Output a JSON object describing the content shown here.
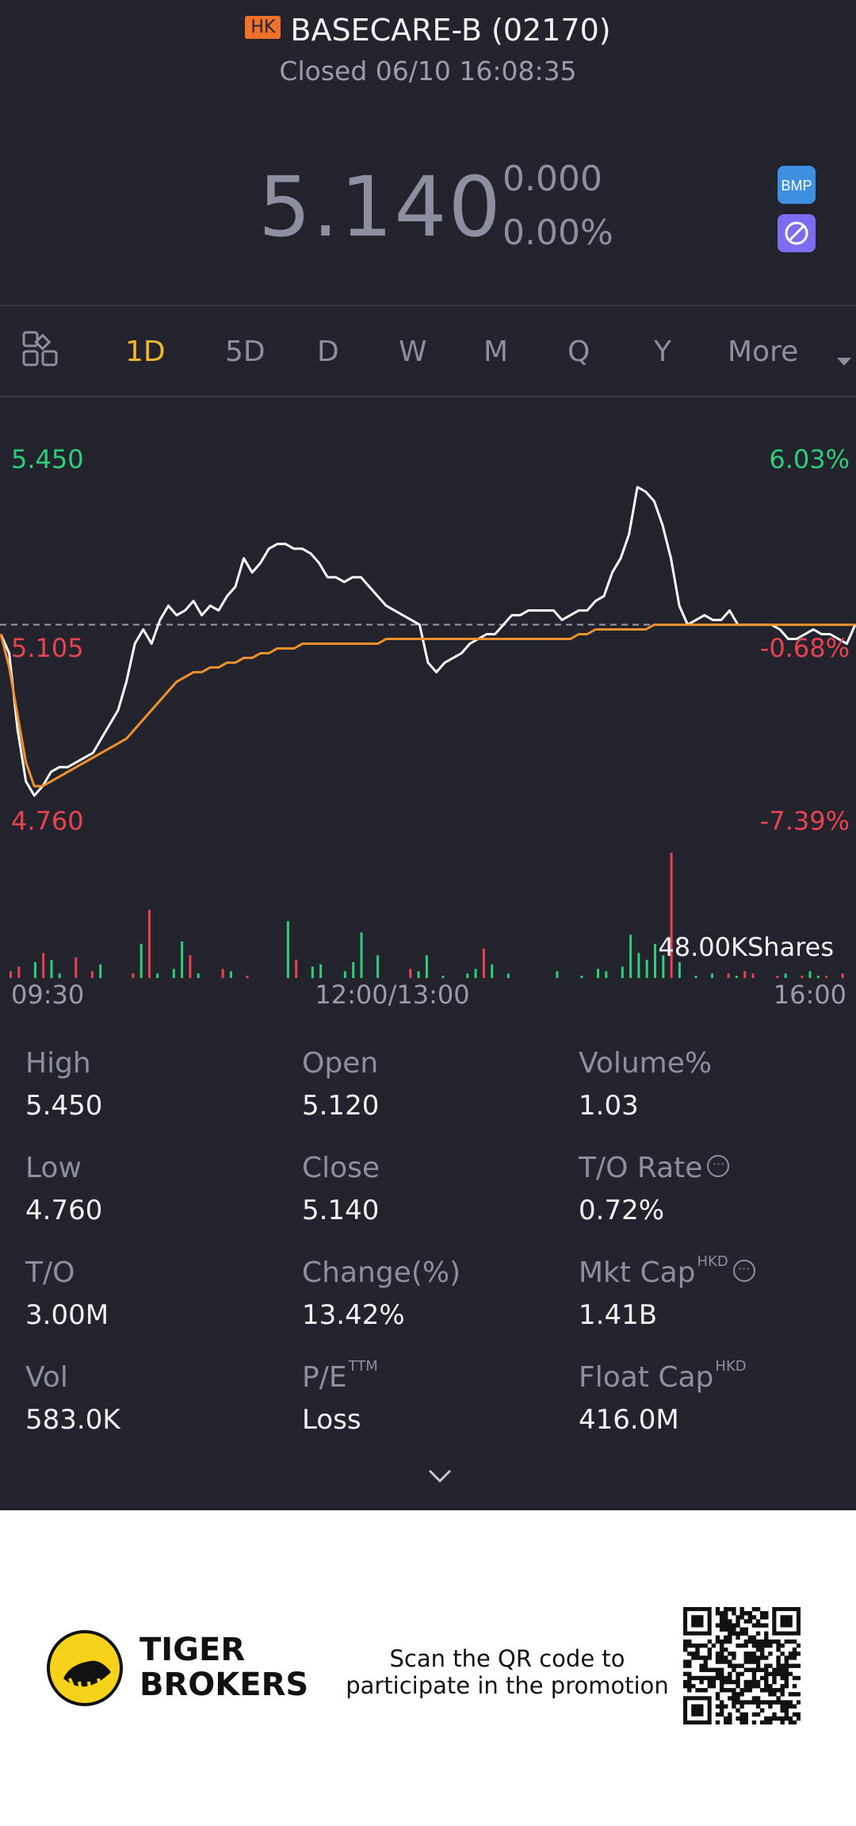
{
  "header": {
    "market_badge": "HK",
    "title": "BASECARE-B (02170)",
    "status": "Closed 06/10 16:08:35",
    "price": "5.140",
    "change": "0.000",
    "change_pct": "0.00%",
    "icons": [
      "bmp-icon",
      "no-margin-icon"
    ]
  },
  "tabs": {
    "items": [
      "1D",
      "5D",
      "D",
      "W",
      "M",
      "Q",
      "Y",
      "More"
    ],
    "active": "1D"
  },
  "chart_data": {
    "type": "line",
    "title": "",
    "price_axis": {
      "high": "5.450",
      "mid": "5.105",
      "low": "4.760"
    },
    "pct_axis": {
      "high": "6.03%",
      "mid": "-0.68%",
      "low": "-7.39%"
    },
    "ylim": [
      4.76,
      5.45
    ],
    "prev_close": 5.14,
    "x_ticks": [
      "09:30",
      "12:00/13:00",
      "16:00"
    ],
    "volume_label": "48.00KShares",
    "series": [
      {
        "color": "#ffffff",
        "values": [
          5.12,
          5.08,
          4.92,
          4.81,
          4.78,
          4.8,
          4.83,
          4.84,
          4.84,
          4.85,
          4.86,
          4.87,
          4.9,
          4.93,
          4.96,
          5.02,
          5.1,
          5.13,
          5.1,
          5.15,
          5.18,
          5.16,
          5.17,
          5.19,
          5.16,
          5.18,
          5.17,
          5.2,
          5.22,
          5.28,
          5.25,
          5.27,
          5.3,
          5.31,
          5.31,
          5.3,
          5.3,
          5.29,
          5.27,
          5.24,
          5.24,
          5.23,
          5.24,
          5.24,
          5.22,
          5.2,
          5.18,
          5.17,
          5.16,
          5.15,
          5.14,
          5.06,
          5.04,
          5.06,
          5.07,
          5.08,
          5.1,
          5.11,
          5.12,
          5.12,
          5.14,
          5.16,
          5.16,
          5.17,
          5.17,
          5.17,
          5.17,
          5.15,
          5.16,
          5.17,
          5.17,
          5.19,
          5.2,
          5.25,
          5.28,
          5.33,
          5.43,
          5.42,
          5.4,
          5.35,
          5.28,
          5.18,
          5.14,
          5.15,
          5.16,
          5.15,
          5.15,
          5.17,
          5.14,
          5.14,
          5.14,
          5.14,
          5.14,
          5.13,
          5.11,
          5.11,
          5.12,
          5.13,
          5.12,
          5.12,
          5.11,
          5.1,
          5.14
        ]
      },
      {
        "color": "#f0912b",
        "values": [
          5.12,
          5.05,
          4.95,
          4.85,
          4.8,
          4.8,
          4.81,
          4.82,
          4.83,
          4.84,
          4.85,
          4.86,
          4.87,
          4.88,
          4.89,
          4.9,
          4.92,
          4.94,
          4.96,
          4.98,
          5.0,
          5.02,
          5.03,
          5.04,
          5.04,
          5.05,
          5.05,
          5.06,
          5.06,
          5.07,
          5.07,
          5.08,
          5.08,
          5.09,
          5.09,
          5.09,
          5.1,
          5.1,
          5.1,
          5.1,
          5.1,
          5.1,
          5.1,
          5.1,
          5.1,
          5.1,
          5.11,
          5.11,
          5.11,
          5.11,
          5.11,
          5.11,
          5.11,
          5.11,
          5.11,
          5.11,
          5.11,
          5.11,
          5.11,
          5.11,
          5.11,
          5.11,
          5.11,
          5.11,
          5.11,
          5.11,
          5.11,
          5.11,
          5.11,
          5.12,
          5.12,
          5.13,
          5.13,
          5.13,
          5.13,
          5.13,
          5.13,
          5.13,
          5.14,
          5.14,
          5.14,
          5.14,
          5.14,
          5.14,
          5.14,
          5.14,
          5.14,
          5.14,
          5.14,
          5.14,
          5.14,
          5.14,
          5.14,
          5.14,
          5.14,
          5.14,
          5.14,
          5.14,
          5.14,
          5.14,
          5.14,
          5.14,
          5.14
        ]
      }
    ],
    "volume": {
      "values": [
        6,
        10,
        0,
        14,
        22,
        16,
        4,
        0,
        18,
        0,
        6,
        12,
        0,
        0,
        0,
        4,
        30,
        60,
        4,
        0,
        8,
        32,
        20,
        4,
        0,
        0,
        8,
        6,
        0,
        2,
        0,
        0,
        0,
        0,
        50,
        16,
        0,
        10,
        12,
        0,
        0,
        6,
        14,
        40,
        0,
        20,
        0,
        0,
        0,
        8,
        6,
        20,
        0,
        2,
        0,
        0,
        4,
        8,
        26,
        12,
        0,
        4,
        0,
        0,
        0,
        0,
        0,
        6,
        0,
        0,
        2,
        0,
        8,
        6,
        0,
        10,
        38,
        22,
        16,
        30,
        20,
        110,
        14,
        0,
        2,
        0,
        4,
        0,
        4,
        2,
        6,
        4,
        0,
        0,
        2,
        4,
        0,
        2,
        6,
        2,
        2,
        0,
        4
      ],
      "colors": [
        "r",
        "r",
        "r",
        "g",
        "r",
        "g",
        "g",
        "g",
        "r",
        "g",
        "r",
        "g",
        "g",
        "g",
        "g",
        "r",
        "g",
        "r",
        "g",
        "g",
        "g",
        "g",
        "r",
        "g",
        "g",
        "g",
        "r",
        "g",
        "g",
        "r",
        "g",
        "g",
        "g",
        "g",
        "g",
        "r",
        "g",
        "g",
        "g",
        "g",
        "g",
        "g",
        "g",
        "g",
        "g",
        "g",
        "g",
        "g",
        "g",
        "r",
        "g",
        "g",
        "g",
        "g",
        "g",
        "g",
        "g",
        "g",
        "r",
        "g",
        "g",
        "g",
        "g",
        "g",
        "g",
        "g",
        "g",
        "g",
        "g",
        "g",
        "g",
        "g",
        "g",
        "g",
        "g",
        "g",
        "g",
        "g",
        "g",
        "g",
        "g",
        "r",
        "g",
        "g",
        "g",
        "g",
        "g",
        "g",
        "r",
        "g",
        "r",
        "r",
        "g",
        "g",
        "r",
        "g",
        "g",
        "r",
        "g",
        "g",
        "r",
        "r",
        "r"
      ]
    }
  },
  "stats": {
    "high": {
      "label": "High",
      "value": "5.450"
    },
    "open": {
      "label": "Open",
      "value": "5.120"
    },
    "volume_pct": {
      "label": "Volume%",
      "value": "1.03"
    },
    "low": {
      "label": "Low",
      "value": "4.760"
    },
    "close": {
      "label": "Close",
      "value": "5.140"
    },
    "to_rate": {
      "label": "T/O Rate",
      "value": "0.72%"
    },
    "to": {
      "label": "T/O",
      "value": "3.00M"
    },
    "change_pct": {
      "label": "Change(%)",
      "value": "13.42%"
    },
    "mkt_cap": {
      "label": "Mkt Cap",
      "sup": "HKD",
      "value": "1.41B"
    },
    "vol": {
      "label": "Vol",
      "value": "583.0K"
    },
    "pe": {
      "label": "P/E",
      "sup": "TTM",
      "value": "Loss"
    },
    "float_cap": {
      "label": "Float Cap",
      "sup": "HKD",
      "value": "416.0M"
    }
  },
  "footer": {
    "brand_line1": "TIGER",
    "brand_line2": "BROKERS",
    "promo_line1": "Scan the QR code to",
    "promo_line2": "participate in the promotion"
  },
  "colors": {
    "background": "#22232d",
    "accent": "#f2b62a",
    "up": "#e8434e",
    "down": "#2fcf7a",
    "avg_line": "#f0912b"
  }
}
